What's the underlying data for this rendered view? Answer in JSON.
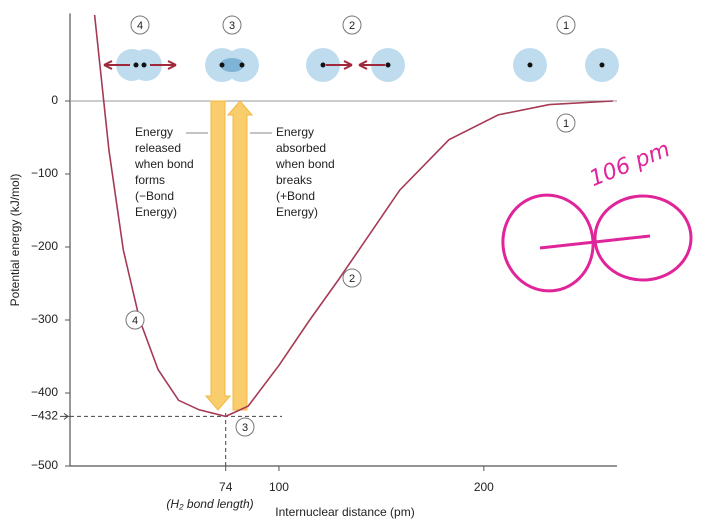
{
  "chart_data": {
    "type": "line",
    "y_label": "Potential energy (kJ/mol)",
    "x_label": "Internuclear distance (pm)",
    "x": [
      10,
      17,
      24,
      32,
      41,
      51,
      61,
      74,
      85,
      100,
      115,
      129,
      139,
      159,
      183,
      207,
      232,
      263
    ],
    "series": [
      {
        "color": "#a63a55",
        "values": [
          118,
          -67,
          -204,
          -300,
          -368,
          -410,
          -423,
          -432,
          -418,
          -362,
          -300,
          -245,
          -204,
          -122,
          -53,
          -19,
          -5,
          0
        ]
      }
    ],
    "xlim": [
      -2,
      265
    ],
    "ylim": [
      -500,
      120
    ],
    "xticks": [
      74,
      100,
      200
    ],
    "yticks": [
      0,
      {
        "value": -100,
        "label": "−100"
      },
      {
        "value": -200,
        "label": "−200"
      },
      {
        "value": -300,
        "label": "−300"
      },
      {
        "value": -400,
        "label": "−400"
      },
      {
        "value": -432,
        "label": "−432"
      },
      {
        "value": -500,
        "label": "−500"
      }
    ],
    "x_tick_note": "(H₂ bond length)",
    "stage_labels": [
      "4",
      "3",
      "2",
      "1"
    ],
    "curve_labels": [
      "4",
      "3",
      "2",
      "1"
    ],
    "annotation_released": [
      "Energy",
      "released",
      "when bond",
      "forms",
      "(−Bond",
      "Energy)"
    ],
    "annotation_absorbed": [
      "Energy",
      "absorbed",
      "when bond",
      "breaks",
      "(+Bond",
      "Energy)"
    ],
    "handwritten_note": "106 pm"
  }
}
